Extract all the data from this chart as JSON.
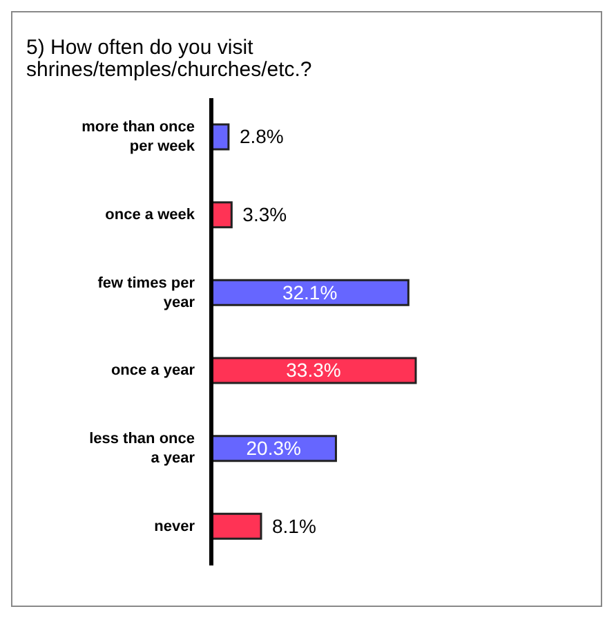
{
  "chart_data": {
    "type": "bar",
    "orientation": "horizontal",
    "title": "5) How often do you visit shrines/temples/churches/etc.?",
    "categories": [
      "more than once per week",
      "once a week",
      "few times per year",
      "once a year",
      "less than once a year",
      "never"
    ],
    "values": [
      2.8,
      3.3,
      32.1,
      33.3,
      20.3,
      8.1
    ],
    "colors": [
      "#6666ff",
      "#ff3355",
      "#6666ff",
      "#ff3355",
      "#6666ff",
      "#ff3355"
    ],
    "value_labels": [
      "2.8%",
      "3.3%",
      "32.1%",
      "33.3%",
      "20.3%",
      "8.1%"
    ],
    "grid": false,
    "legend": false
  }
}
